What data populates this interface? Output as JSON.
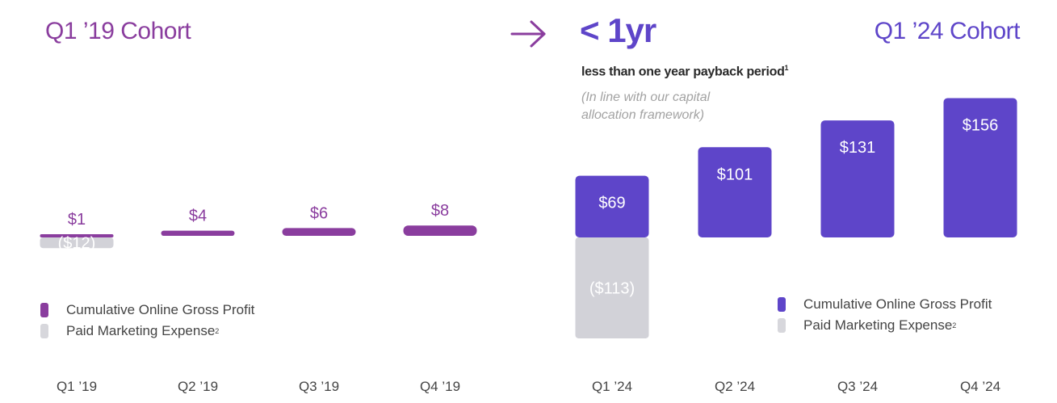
{
  "colors": {
    "purple_2019": "#8a3d9e",
    "purple_2024": "#5e45c9",
    "gray": "#c9c8d2"
  },
  "header": {
    "left_title": "Q1 ’19 Cohort",
    "highlight": "< 1yr",
    "subtitle": "less than one year payback period",
    "subtitle_footnote": "1",
    "note": "(In line with our capital allocation framework)",
    "right_title": "Q1 ’24 Cohort"
  },
  "legend": {
    "gross_profit": "Cumulative Online Gross Profit",
    "marketing": "Paid Marketing Expense",
    "marketing_footnote": "2"
  },
  "chart_data": [
    {
      "type": "bar",
      "cohort": "Q1 ’19 Cohort",
      "categories": [
        "Q1 ’19",
        "Q2 ’19",
        "Q3 ’19",
        "Q4 ’19"
      ],
      "series": [
        {
          "name": "Cumulative Online Gross Profit",
          "values": [
            1,
            4,
            6,
            8
          ],
          "labels": [
            "$1",
            "$4",
            "$6",
            "$8"
          ]
        },
        {
          "name": "Paid Marketing Expense",
          "values": [
            -12,
            null,
            null,
            null
          ],
          "labels": [
            "($12)",
            "",
            "",
            ""
          ]
        }
      ],
      "ylim": [
        -120,
        160
      ],
      "xlabel": "",
      "ylabel": ""
    },
    {
      "type": "bar",
      "cohort": "Q1 ’24 Cohort",
      "categories": [
        "Q1 ’24",
        "Q2 ’24",
        "Q3 ’24",
        "Q4 ’24"
      ],
      "series": [
        {
          "name": "Cumulative Online Gross Profit",
          "values": [
            69,
            101,
            131,
            156
          ],
          "labels": [
            "$69",
            "$101",
            "$131",
            "$156"
          ]
        },
        {
          "name": "Paid Marketing Expense",
          "values": [
            -113,
            null,
            null,
            null
          ],
          "labels": [
            "($113)",
            "",
            "",
            ""
          ]
        }
      ],
      "ylim": [
        -120,
        160
      ],
      "xlabel": "",
      "ylabel": ""
    }
  ]
}
